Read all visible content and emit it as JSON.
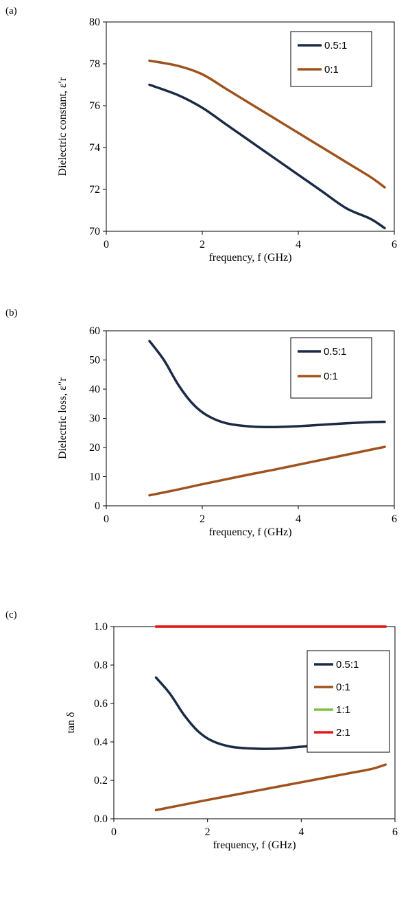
{
  "chart_data": [
    {
      "panel": "(a)",
      "type": "line",
      "xlabel": "frequency, f (GHz)",
      "ylabel": "Dielectric constant, ε′r",
      "xlim": [
        0,
        6
      ],
      "ylim": [
        70,
        80
      ],
      "xticks": [
        0,
        2,
        4,
        6
      ],
      "yticks": [
        70,
        72,
        74,
        76,
        78,
        80
      ],
      "y_tick_decimals": 0,
      "legend_position": "top-right",
      "series": [
        {
          "name": "0.5:1",
          "color": "#1b2a45",
          "x": [
            0.9,
            1.5,
            2.0,
            2.5,
            3.0,
            3.5,
            4.0,
            4.5,
            5.0,
            5.5,
            5.8
          ],
          "y": [
            77.0,
            76.5,
            75.9,
            75.1,
            74.3,
            73.5,
            72.7,
            71.9,
            71.1,
            70.6,
            70.15
          ]
        },
        {
          "name": "0:1",
          "color": "#a0521d",
          "x": [
            0.9,
            1.5,
            2.0,
            2.5,
            3.0,
            3.5,
            4.0,
            4.5,
            5.0,
            5.5,
            5.8
          ],
          "y": [
            78.15,
            77.9,
            77.5,
            76.8,
            76.1,
            75.4,
            74.7,
            74.0,
            73.3,
            72.6,
            72.1
          ]
        }
      ]
    },
    {
      "panel": "(b)",
      "type": "line",
      "xlabel": "frequency, f (GHz)",
      "ylabel": "Dielectric loss, ε″r",
      "xlim": [
        0,
        6
      ],
      "ylim": [
        0,
        60
      ],
      "xticks": [
        0,
        2,
        4,
        6
      ],
      "yticks": [
        0,
        10,
        20,
        30,
        40,
        50,
        60
      ],
      "y_tick_decimals": 0,
      "legend_position": "top-right",
      "series": [
        {
          "name": "0.5:1",
          "color": "#1b2a45",
          "x": [
            0.9,
            1.2,
            1.5,
            1.8,
            2.1,
            2.5,
            3.0,
            3.5,
            4.0,
            4.5,
            5.0,
            5.5,
            5.8
          ],
          "y": [
            56.5,
            50.0,
            41.5,
            35.0,
            31.0,
            28.3,
            27.2,
            27.0,
            27.3,
            27.8,
            28.3,
            28.7,
            28.8
          ]
        },
        {
          "name": "0:1",
          "color": "#a0521d",
          "x": [
            0.9,
            1.5,
            2.0,
            2.5,
            3.0,
            3.5,
            4.0,
            4.5,
            5.0,
            5.5,
            5.8
          ],
          "y": [
            3.6,
            5.6,
            7.4,
            9.1,
            10.8,
            12.4,
            14.1,
            15.8,
            17.5,
            19.2,
            20.2
          ]
        }
      ]
    },
    {
      "panel": "(c)",
      "type": "line",
      "xlabel": "frequency, f (GHz)",
      "ylabel": "tan δ",
      "xlim": [
        0,
        6
      ],
      "ylim": [
        0.0,
        1.0
      ],
      "xticks": [
        0,
        2,
        4,
        6
      ],
      "yticks": [
        0.0,
        0.2,
        0.4,
        0.6,
        0.8,
        1.0
      ],
      "y_tick_decimals": 1,
      "legend_position": "top-right",
      "series": [
        {
          "name": "0.5:1",
          "color": "#1b2a45",
          "x": [
            0.9,
            1.2,
            1.5,
            1.8,
            2.1,
            2.5,
            3.0,
            3.5,
            4.0,
            4.5,
            5.0,
            5.5,
            5.8
          ],
          "y": [
            0.735,
            0.65,
            0.54,
            0.455,
            0.405,
            0.375,
            0.365,
            0.365,
            0.375,
            0.385,
            0.395,
            0.405,
            0.41
          ]
        },
        {
          "name": "0:1",
          "color": "#a0521d",
          "x": [
            0.9,
            1.5,
            2.0,
            2.5,
            3.0,
            3.5,
            4.0,
            4.5,
            5.0,
            5.5,
            5.8
          ],
          "y": [
            0.045,
            0.074,
            0.098,
            0.121,
            0.144,
            0.167,
            0.19,
            0.213,
            0.236,
            0.259,
            0.282
          ]
        },
        {
          "name": "1:1",
          "color": "#7dc242",
          "x": [
            0.9,
            5.8
          ],
          "y": [
            1.0,
            1.0
          ]
        },
        {
          "name": "2:1",
          "color": "#e8141c",
          "x": [
            0.9,
            5.8
          ],
          "y": [
            1.0,
            1.0
          ]
        }
      ]
    }
  ]
}
